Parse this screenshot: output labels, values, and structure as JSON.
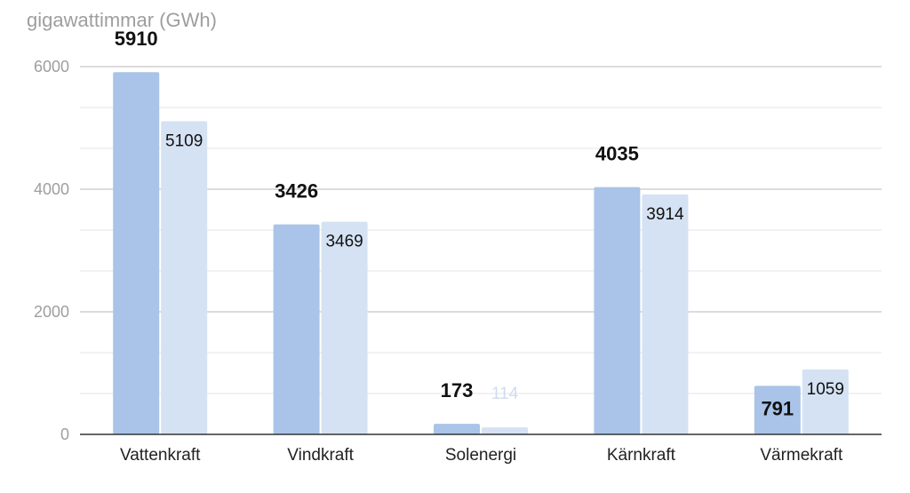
{
  "chart_data": {
    "type": "bar",
    "ylabel": "gigawattimmar (GWh)",
    "categories": [
      "Vattenkraft",
      "Vindkraft",
      "Solenergi",
      "Kärnkraft",
      "Värmekraft"
    ],
    "series": [
      {
        "values": [
          5910,
          3426,
          173,
          4035,
          791
        ],
        "color": "#a9c4e8"
      },
      {
        "values": [
          5109,
          3469,
          114,
          3914,
          1059
        ],
        "color": "#d5e2f3"
      }
    ],
    "ylim": [
      0,
      6000
    ],
    "yticks": [
      "0",
      "2000",
      "4000",
      "6000"
    ],
    "grid": true
  }
}
